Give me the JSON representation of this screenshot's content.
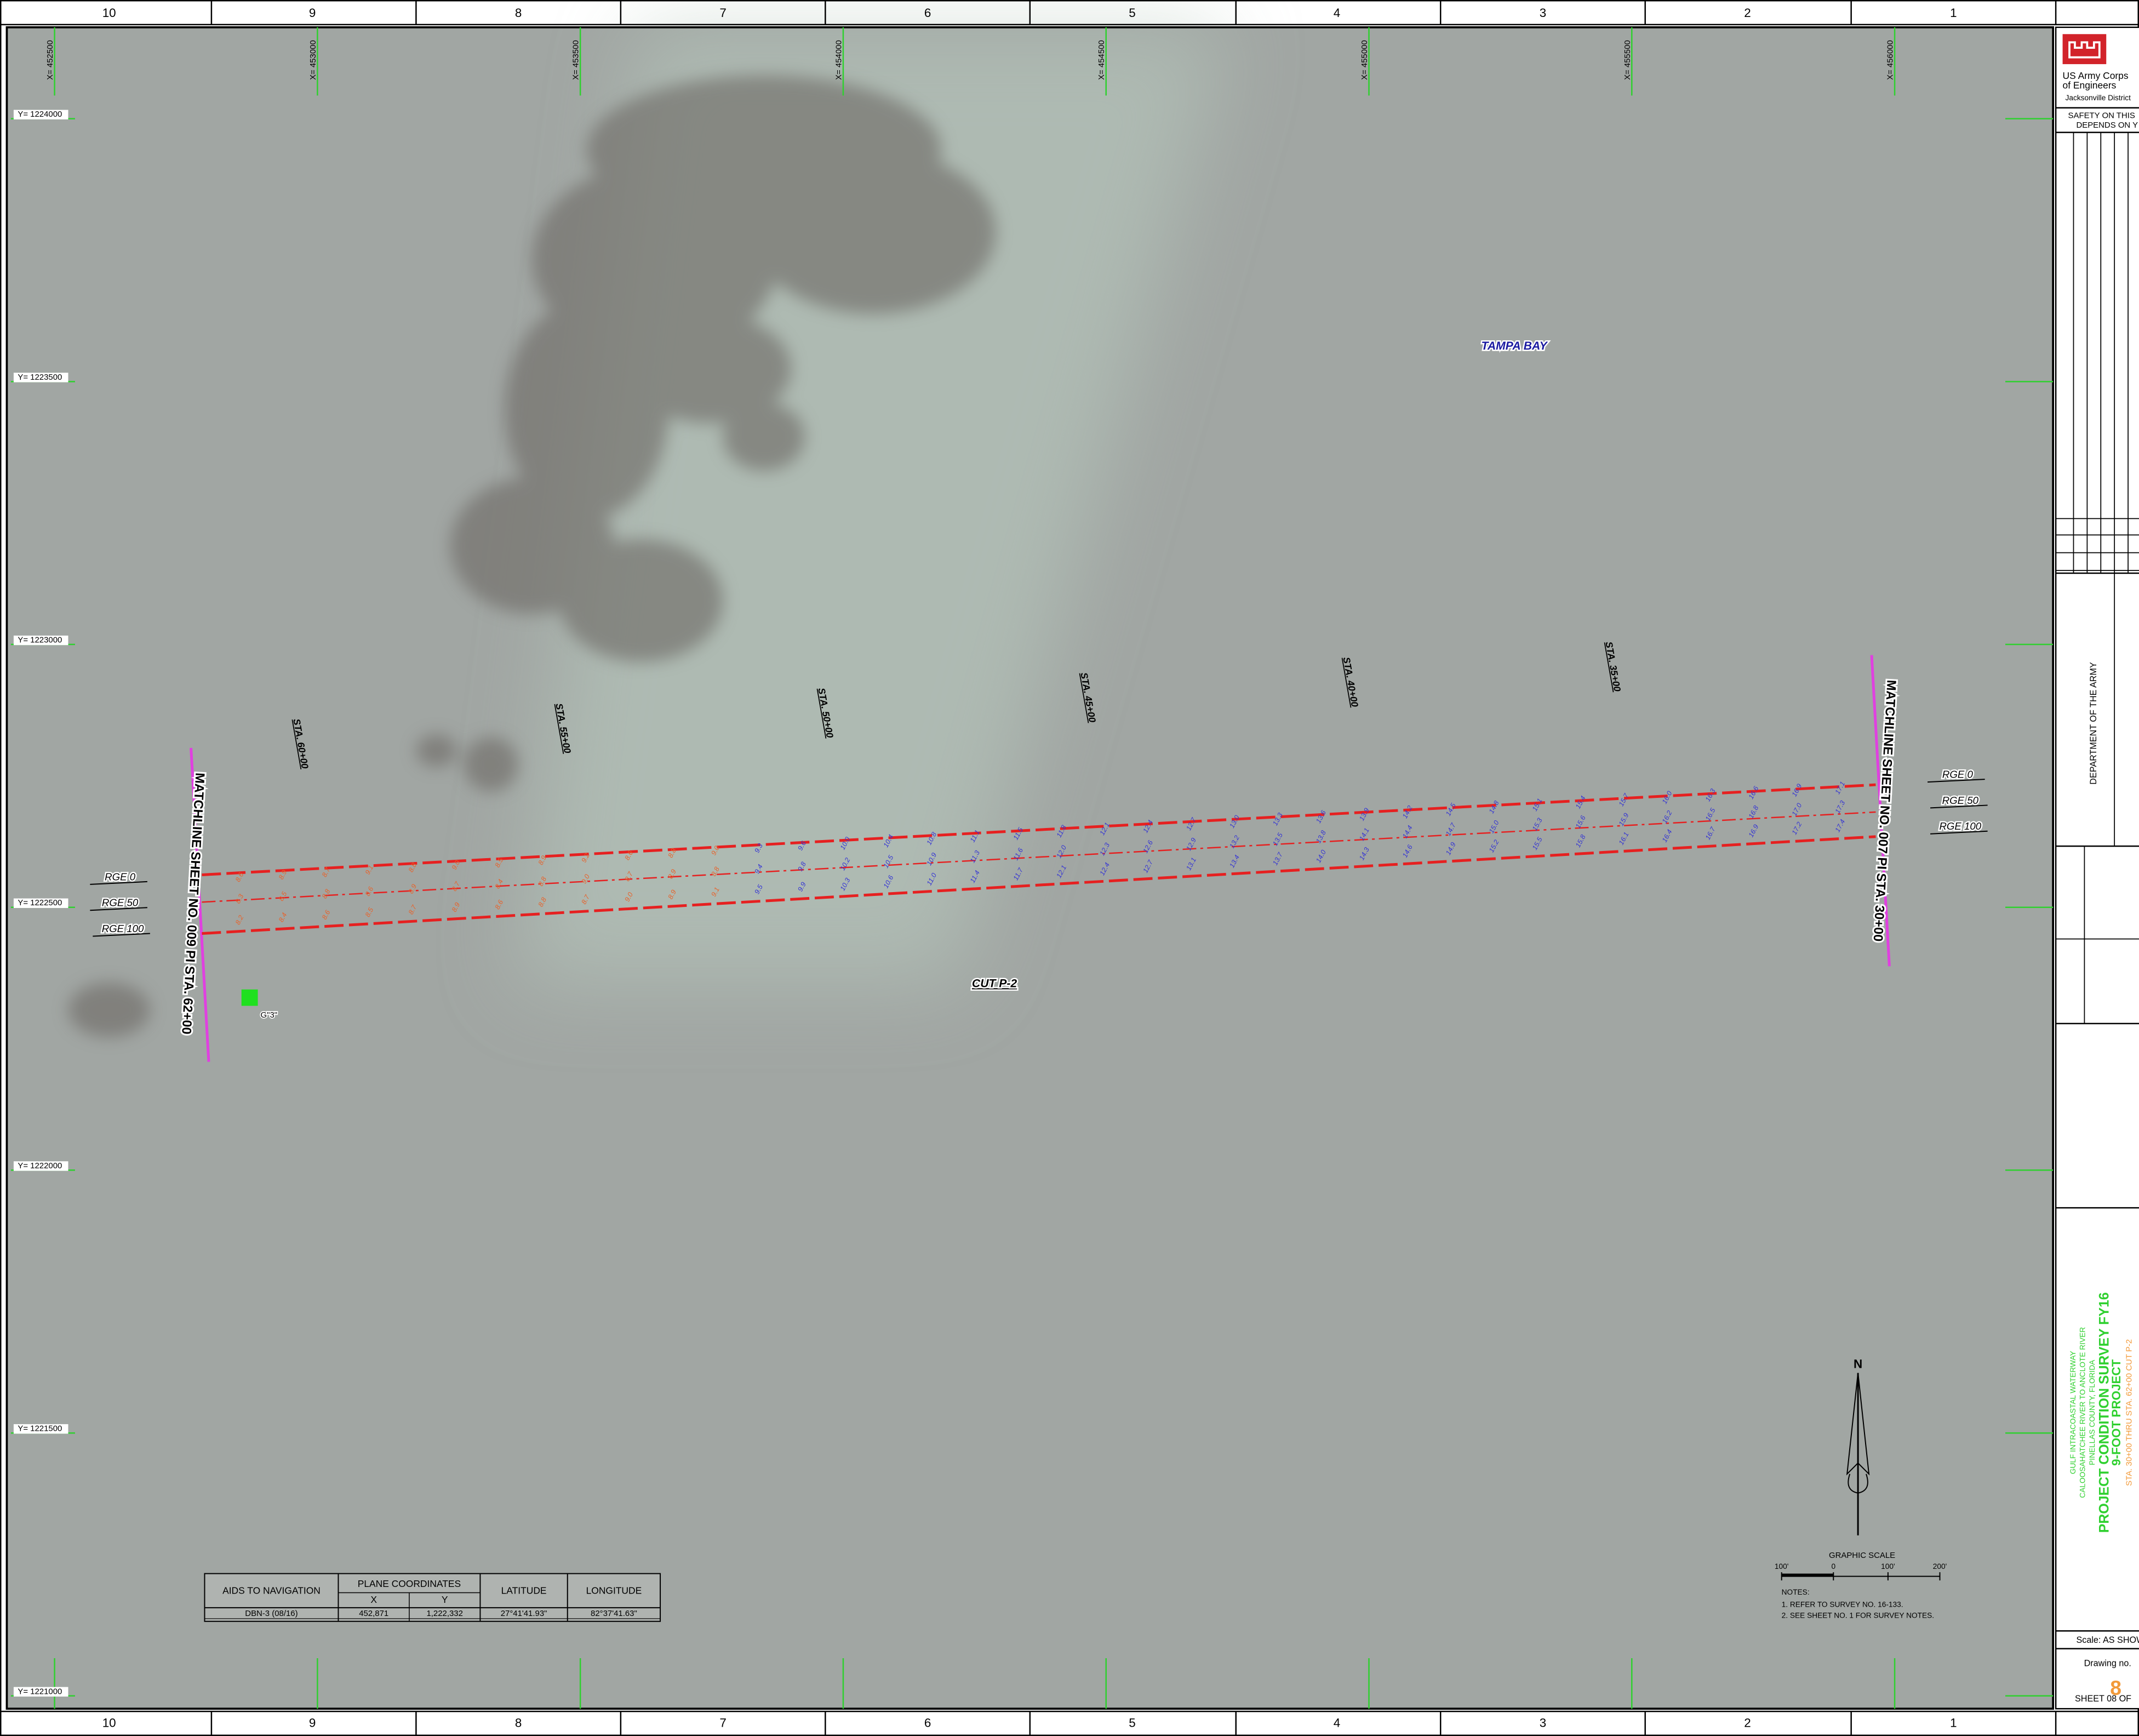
{
  "border": {
    "columns": [
      "10",
      "9",
      "8",
      "7",
      "6",
      "5",
      "4",
      "3",
      "2",
      "1"
    ]
  },
  "map": {
    "x_labels": [
      "X= 452500",
      "X= 453000",
      "X= 453500",
      "X= 454000",
      "X= 454500",
      "X= 455000",
      "X= 455500",
      "X= 456000"
    ],
    "y_labels": [
      "Y= 1224000",
      "Y= 1223500",
      "Y= 1223000",
      "Y= 1222500",
      "Y= 1222000",
      "Y= 1221500",
      "Y= 1221000"
    ],
    "stations": [
      "STA. 60+00",
      "STA. 55+00",
      "STA. 50+00",
      "STA. 45+00",
      "STA. 40+00",
      "STA. 35+00"
    ],
    "matchlines": [
      "MATCHLINE SHEET NO. 009 PI STA. 62+00",
      "MATCHLINE SHEET NO. 007 PI STA. 30+00"
    ],
    "ranges_left": [
      "RGE 0",
      "RGE 50",
      "RGE 100"
    ],
    "ranges_right": [
      "RGE 0",
      "RGE 50",
      "RGE 100"
    ],
    "water_label": "TAMPA BAY",
    "cut_label": "CUT P-2",
    "aid_label": "G\"3\"",
    "soundings": [
      {
        "shoal": [
          "8.6",
          "8.9",
          "8.7",
          "9.1",
          "8.8",
          "9.0",
          "8.5",
          "8.9",
          "9.2",
          "8.6",
          "8.8",
          "9.0"
        ],
        "deep": [
          "9.3",
          "9.6",
          "10.0",
          "10.4",
          "10.8",
          "11.1",
          "11.5",
          "11.8",
          "12.1",
          "12.4",
          "12.7",
          "13.0",
          "13.3",
          "13.6",
          "13.9",
          "14.2",
          "14.5",
          "14.8",
          "15.1",
          "15.4",
          "15.7",
          "16.0",
          "16.3",
          "16.6",
          "16.9",
          "17.1"
        ]
      },
      {
        "shoal": [
          "8.3",
          "8.5",
          "8.8",
          "8.6",
          "8.9",
          "8.7",
          "8.4",
          "8.8",
          "9.0",
          "8.7",
          "8.9",
          "8.8"
        ],
        "deep": [
          "9.4",
          "9.8",
          "10.2",
          "10.5",
          "10.9",
          "11.3",
          "11.6",
          "12.0",
          "12.3",
          "12.6",
          "12.9",
          "13.2",
          "13.5",
          "13.8",
          "14.1",
          "14.4",
          "14.7",
          "15.0",
          "15.3",
          "15.6",
          "15.9",
          "16.2",
          "16.5",
          "16.8",
          "17.0",
          "17.3"
        ]
      },
      {
        "shoal": [
          "8.2",
          "8.4",
          "8.6",
          "8.5",
          "8.7",
          "8.9",
          "8.6",
          "8.8",
          "8.7",
          "9.0",
          "8.9",
          "9.1"
        ],
        "deep": [
          "9.5",
          "9.9",
          "10.3",
          "10.6",
          "11.0",
          "11.4",
          "11.7",
          "12.1",
          "12.4",
          "12.7",
          "13.1",
          "13.4",
          "13.7",
          "14.0",
          "14.3",
          "14.6",
          "14.9",
          "15.2",
          "15.5",
          "15.8",
          "16.1",
          "16.4",
          "16.7",
          "16.9",
          "17.2",
          "17.4"
        ]
      }
    ]
  },
  "aids_table": {
    "headers": [
      "AIDS TO NAVIGATION",
      "PLANE COORDINATES",
      "LATITUDE",
      "LONGITUDE"
    ],
    "subheaders": [
      "X",
      "Y"
    ],
    "rows": [
      [
        "DBN-3 (08/16)",
        "452,871",
        "1,222,332",
        "27°41'41.93\"",
        "82°37'41.63\""
      ]
    ]
  },
  "north": "N",
  "scale": {
    "title": "GRAPHIC SCALE",
    "labels": [
      "100'",
      "0",
      "100'",
      "200'"
    ]
  },
  "notes": {
    "title": "NOTES:",
    "items": [
      "1. REFER TO SURVEY NO. 16-133.",
      "2. SEE SHEET NO. 1 FOR SURVEY NOTES."
    ]
  },
  "title_block": {
    "agency": [
      "US Army Corps",
      "of Engineers",
      "Jacksonville District"
    ],
    "safety": [
      "SAFETY ON THIS",
      "DEPENDS ON Y"
    ],
    "department": "DEPARTMENT OF THE ARMY",
    "project": [
      "GULF INTRACOASTAL WATERWAY",
      "CALOOSAHATCHEE RIVER TO ANCLOTE RIVER",
      "PINELLAS COUNTY, FLORIDA",
      "PROJECT CONDITION SURVEY FY16",
      "9-FOOT PROJECT",
      "STA. 30+00 THRU STA. 62+00 CUT P-2"
    ],
    "scale": "Scale:  AS SHOWN",
    "drawing_label": "Drawing no.",
    "drawing_no": "8",
    "sheet": "SHEET  08  OF"
  }
}
